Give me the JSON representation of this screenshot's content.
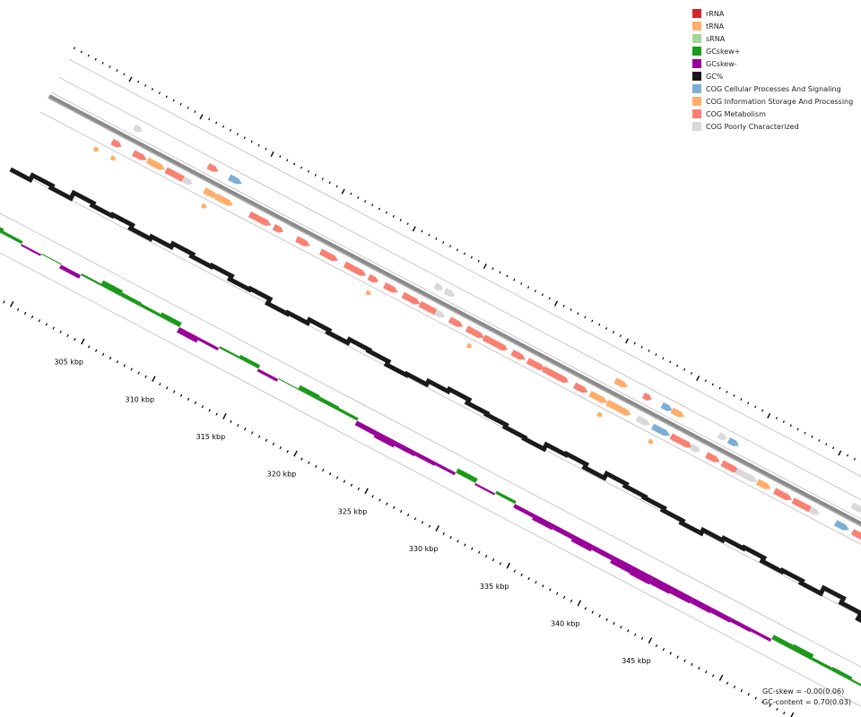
{
  "colors": {
    "guide": "#bdbdbd",
    "backbone": "#808080",
    "gc_content": "#1a1a1a",
    "gc_skew_plus": "#1a9a1a",
    "gc_skew_minus": "#990099"
  },
  "legend": [
    {
      "id": "rrna",
      "label": "rRNA",
      "color": "#d62728"
    },
    {
      "id": "trna",
      "label": "tRNA",
      "color": "#fdae6b"
    },
    {
      "id": "srna",
      "label": "sRNA",
      "color": "#a1d99b"
    },
    {
      "id": "gcskew-plus",
      "label": "GCskew+",
      "color": "#1a9a1a"
    },
    {
      "id": "gcskew-minus",
      "label": "GCskew-",
      "color": "#990099"
    },
    {
      "id": "gc-percent",
      "label": "GC%",
      "color": "#1a1a1a"
    },
    {
      "id": "cog-cellular",
      "label": "COG Cellular Processes And Signaling",
      "color": "#7bafd4"
    },
    {
      "id": "cog-information",
      "label": "COG Information Storage And Processing",
      "color": "#fdae6b"
    },
    {
      "id": "cog-metabolism",
      "label": "COG Metabolism",
      "color": "#fa8072"
    },
    {
      "id": "cog-poorly",
      "label": "COG Poorly Characterized",
      "color": "#d9d9d9"
    }
  ],
  "scale": {
    "labels": [
      "305 kbp",
      "310 kbp",
      "315 kbp",
      "320 kbp",
      "325 kbp",
      "330 kbp",
      "335 kbp",
      "340 kbp",
      "345 kbp"
    ],
    "label_values": [
      305,
      310,
      315,
      320,
      325,
      330,
      335,
      340,
      345
    ]
  },
  "stats": {
    "gc_skew": "GC-skew = -0.00(0.06)",
    "gc_content": "GC-content = 0.70(0.03)"
  },
  "features": {
    "outer_strand": [
      {
        "cog": "cog-poorly",
        "kbp": 301.6
      },
      {
        "cog": "cog-metabolism",
        "kbp": 306.8
      },
      {
        "cog": "cog-cellular",
        "kbp": 308.3
      },
      {
        "cog": "cog-poorly",
        "kbp": 322.8
      },
      {
        "cog": "cog-poorly",
        "kbp": 323.5
      },
      {
        "cog": "cog-information",
        "kbp": 335.5
      },
      {
        "cog": "cog-metabolism",
        "kbp": 337.5
      },
      {
        "cog": "cog-cellular",
        "kbp": 338.8
      },
      {
        "cog": "cog-information",
        "kbp": 339.5
      },
      {
        "cog": "cog-poorly",
        "kbp": 342.8
      },
      {
        "cog": "cog-cellular",
        "kbp": 343.5
      },
      {
        "cog": "cog-poorly",
        "kbp": 352.2
      }
    ],
    "inner_strand": [
      {
        "cog": "cog-metabolism",
        "kbp": 300.8
      },
      {
        "cog": "cog-metabolism",
        "kbp": 302.3
      },
      {
        "cog": "cog-information",
        "kbp": 303.3
      },
      {
        "cog": "cog-metabolism",
        "kbp": 304.6
      },
      {
        "cog": "cog-poorly",
        "kbp": 305.8
      },
      {
        "cog": "cog-information",
        "kbp": 307.3
      },
      {
        "cog": "cog-information",
        "kbp": 308.1
      },
      {
        "cog": "cog-metabolism",
        "kbp": 310.5
      },
      {
        "cog": "cog-metabolism",
        "kbp": 312.2
      },
      {
        "cog": "cog-metabolism",
        "kbp": 313.8
      },
      {
        "cog": "cog-metabolism",
        "kbp": 315.5
      },
      {
        "cog": "cog-metabolism",
        "kbp": 317.2
      },
      {
        "cog": "cog-metabolism",
        "kbp": 318.9
      },
      {
        "cog": "cog-metabolism",
        "kbp": 320.0
      },
      {
        "cog": "cog-metabolism",
        "kbp": 321.3
      },
      {
        "cog": "cog-metabolism",
        "kbp": 322.5
      },
      {
        "cog": "cog-poorly",
        "kbp": 323.6
      },
      {
        "cog": "cog-metabolism",
        "kbp": 324.6
      },
      {
        "cog": "cog-metabolism",
        "kbp": 325.8
      },
      {
        "cog": "cog-metabolism",
        "kbp": 327.0
      },
      {
        "cog": "cog-metabolism",
        "kbp": 328.0
      },
      {
        "cog": "cog-metabolism",
        "kbp": 329.0
      },
      {
        "cog": "cog-metabolism",
        "kbp": 330.1
      },
      {
        "cog": "cog-metabolism",
        "kbp": 331.2
      },
      {
        "cog": "cog-metabolism",
        "kbp": 332.3
      },
      {
        "cog": "cog-metabolism",
        "kbp": 333.4
      },
      {
        "cog": "cog-information",
        "kbp": 334.5
      },
      {
        "cog": "cog-information",
        "kbp": 335.7
      },
      {
        "cog": "cog-information",
        "kbp": 336.7
      },
      {
        "cog": "cog-poorly",
        "kbp": 337.8
      },
      {
        "cog": "cog-cellular",
        "kbp": 338.9
      },
      {
        "cog": "cog-metabolism",
        "kbp": 340.2
      },
      {
        "cog": "cog-poorly",
        "kbp": 341.6
      },
      {
        "cog": "cog-metabolism",
        "kbp": 342.7
      },
      {
        "cog": "cog-metabolism",
        "kbp": 343.8
      },
      {
        "cog": "cog-poorly",
        "kbp": 344.8
      },
      {
        "cog": "cog-poorly",
        "kbp": 345.5
      },
      {
        "cog": "cog-information",
        "kbp": 346.3
      },
      {
        "cog": "cog-metabolism",
        "kbp": 347.5
      },
      {
        "cog": "cog-metabolism",
        "kbp": 348.8
      },
      {
        "cog": "cog-poorly",
        "kbp": 350.0
      },
      {
        "cog": "cog-cellular",
        "kbp": 351.8
      },
      {
        "cog": "cog-metabolism",
        "kbp": 353.0
      },
      {
        "cog": "cog-poorly",
        "kbp": 354.0
      },
      {
        "cog": "cog-metabolism",
        "kbp": 355.0
      }
    ],
    "trna_marks": [
      {
        "kbp": 300.0
      },
      {
        "kbp": 301.2
      },
      {
        "kbp": 307.6
      },
      {
        "kbp": 319.2
      },
      {
        "kbp": 326.3
      },
      {
        "kbp": 335.5
      },
      {
        "kbp": 339.1
      }
    ]
  },
  "gc_content_profile": [
    0.76,
    0.68,
    0.72,
    0.62,
    0.66,
    0.64,
    0.7,
    0.66,
    0.6,
    0.64,
    0.62,
    0.68,
    0.66,
    0.74,
    0.72,
    0.66,
    0.7,
    0.64,
    0.66,
    0.72,
    0.7,
    0.64,
    0.6,
    0.66,
    0.68,
    0.72,
    0.74,
    0.66,
    0.64,
    0.7,
    0.62,
    0.66,
    0.68,
    0.72,
    0.76,
    0.7,
    0.66,
    0.64,
    0.7,
    0.68,
    0.72,
    0.62,
    0.7,
    0.8,
    0.72,
    0.64
  ],
  "gc_skew_profile": [
    0.05,
    0.03,
    -0.02,
    0.01,
    -0.04,
    0.02,
    0.06,
    0.04,
    0.03,
    0.05,
    -0.06,
    -0.03,
    0.02,
    0.04,
    -0.03,
    0.01,
    0.05,
    0.04,
    0.03,
    -0.05,
    -0.07,
    -0.05,
    -0.04,
    -0.03,
    0.05,
    -0.02,
    0.03,
    -0.04,
    -0.06,
    -0.05,
    -0.07,
    -0.05,
    -0.08,
    -0.09,
    -0.08,
    -0.07,
    -0.06,
    -0.05,
    -0.04,
    -0.03,
    0.05,
    0.06,
    0.03,
    0.04,
    0.02,
    0.03
  ]
}
